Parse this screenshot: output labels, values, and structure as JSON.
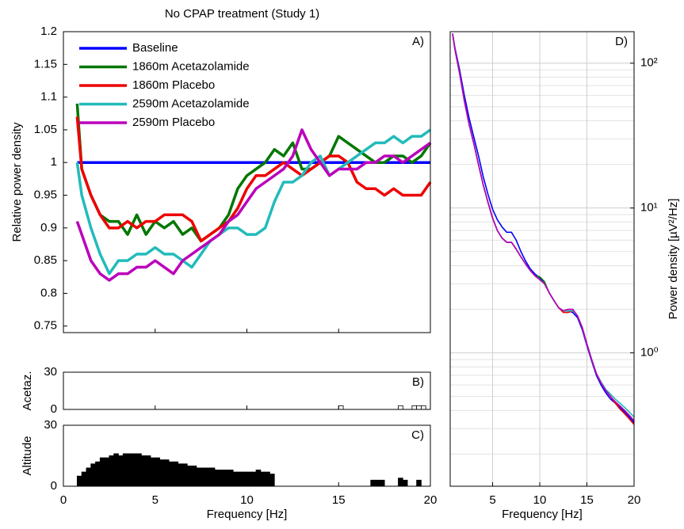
{
  "chart_data": [
    {
      "type": "line",
      "title": "No CPAP treatment (Study 1)",
      "annotation": "A)",
      "ylabel": "Relative power density",
      "legend": "upper left",
      "x": [
        0.75,
        1,
        1.5,
        2,
        2.5,
        3,
        3.5,
        4,
        4.5,
        5,
        5.5,
        6,
        6.5,
        7,
        7.5,
        8,
        8.5,
        9,
        9.5,
        10,
        10.5,
        11,
        11.5,
        12,
        12.5,
        13,
        13.5,
        14,
        14.5,
        15,
        15.5,
        16,
        16.5,
        17,
        17.5,
        18,
        18.5,
        19,
        19.5,
        20
      ],
      "series": [
        {
          "name": "Baseline",
          "color": "#0000ff",
          "values": [
            1,
            1,
            1,
            1,
            1,
            1,
            1,
            1,
            1,
            1,
            1,
            1,
            1,
            1,
            1,
            1,
            1,
            1,
            1,
            1,
            1,
            1,
            1,
            1,
            1,
            1,
            1,
            1,
            1,
            1,
            1,
            1,
            1,
            1,
            1,
            1,
            1,
            1,
            1,
            1
          ]
        },
        {
          "name": "1860m Acetazolamide",
          "color": "#007700",
          "values": [
            1.09,
            0.99,
            0.95,
            0.92,
            0.91,
            0.91,
            0.89,
            0.92,
            0.89,
            0.91,
            0.9,
            0.91,
            0.89,
            0.9,
            0.88,
            0.89,
            0.9,
            0.92,
            0.96,
            0.98,
            0.99,
            1.0,
            1.02,
            1.01,
            1.03,
            0.99,
            0.99,
            1.0,
            1.01,
            1.04,
            1.03,
            1.02,
            1.01,
            1.0,
            1.0,
            1.01,
            1.01,
            1.0,
            1.01,
            1.03
          ]
        },
        {
          "name": "1860m Placebo",
          "color": "#ee0000",
          "values": [
            1.07,
            0.99,
            0.95,
            0.92,
            0.9,
            0.9,
            0.91,
            0.9,
            0.91,
            0.91,
            0.92,
            0.92,
            0.92,
            0.91,
            0.88,
            0.89,
            0.9,
            0.91,
            0.93,
            0.96,
            0.98,
            0.98,
            0.99,
            1.0,
            0.99,
            0.98,
            0.99,
            1.0,
            1.01,
            1.01,
            1.0,
            0.97,
            0.96,
            0.96,
            0.95,
            0.96,
            0.95,
            0.95,
            0.95,
            0.97
          ]
        },
        {
          "name": "2590m Acetazolamide",
          "color": "#22bbbb",
          "values": [
            1.0,
            0.95,
            0.9,
            0.86,
            0.83,
            0.85,
            0.85,
            0.86,
            0.86,
            0.87,
            0.86,
            0.86,
            0.85,
            0.84,
            0.86,
            0.88,
            0.89,
            0.9,
            0.9,
            0.89,
            0.89,
            0.9,
            0.94,
            0.97,
            0.97,
            0.98,
            1.0,
            1.01,
            0.98,
            0.99,
            1.0,
            1.01,
            1.02,
            1.03,
            1.03,
            1.04,
            1.03,
            1.04,
            1.04,
            1.05
          ]
        },
        {
          "name": "2590m Placebo",
          "color": "#bb00bb",
          "values": [
            0.91,
            0.89,
            0.85,
            0.83,
            0.82,
            0.83,
            0.83,
            0.84,
            0.84,
            0.85,
            0.84,
            0.83,
            0.85,
            0.86,
            0.87,
            0.88,
            0.89,
            0.91,
            0.92,
            0.94,
            0.96,
            0.97,
            0.98,
            0.99,
            1.01,
            1.05,
            1.02,
            1.0,
            0.98,
            0.99,
            0.99,
            0.99,
            1.0,
            1.0,
            1.01,
            1.01,
            1.0,
            1.01,
            1.02,
            1.03
          ]
        }
      ],
      "xlim": [
        0,
        20
      ],
      "ylim": [
        0.74,
        1.2
      ],
      "yticks": [
        0.75,
        0.8,
        0.85,
        0.9,
        0.95,
        1,
        1.05,
        1.1,
        1.15,
        1.2
      ]
    },
    {
      "type": "bar",
      "annotation": "B)",
      "ylabel": "Acetaz.",
      "color": "#ffffff",
      "edgecolor": "#000000",
      "x": [
        15,
        18.25,
        19,
        19.25,
        19.5
      ],
      "values": [
        3,
        3,
        3,
        3,
        3
      ],
      "xlim": [
        0,
        20
      ],
      "ylim": [
        0,
        30
      ],
      "yticks": [
        0,
        30
      ]
    },
    {
      "type": "bar",
      "annotation": "C)",
      "ylabel": "Altitude",
      "xlabel": "Frequency [Hz]",
      "color": "#000000",
      "edgecolor": "#000000",
      "x": [
        0.75,
        1,
        1.25,
        1.5,
        1.75,
        2,
        2.25,
        2.5,
        2.75,
        3,
        3.25,
        3.5,
        3.75,
        4,
        4.25,
        4.5,
        4.75,
        5,
        5.25,
        5.5,
        5.75,
        6,
        6.25,
        6.5,
        6.75,
        7,
        7.25,
        7.5,
        7.75,
        8,
        8.25,
        8.5,
        8.75,
        9,
        9.25,
        9.5,
        9.75,
        10,
        10.25,
        10.5,
        10.75,
        11,
        11.25,
        16.75,
        17,
        17.25,
        18.25,
        18.5,
        19.25
      ],
      "values": [
        5,
        7,
        9,
        11,
        12,
        14,
        14,
        15,
        16,
        15,
        16,
        16,
        16,
        16,
        15,
        15,
        14,
        14,
        13,
        13,
        12,
        12,
        11,
        11,
        10,
        10,
        9,
        9,
        9,
        9,
        8,
        8,
        8,
        8,
        7,
        7,
        7,
        7,
        7,
        8,
        7,
        7,
        6,
        3,
        3,
        3,
        4,
        3,
        3
      ],
      "xlim": [
        0,
        20
      ],
      "ylim": [
        0,
        30
      ],
      "yticks": [
        0,
        30
      ],
      "xticks": [
        0,
        5,
        10,
        15,
        20
      ]
    },
    {
      "type": "line",
      "annotation": "D)",
      "ylabel": "Power density [µV²/Hz]",
      "xlabel": "Frequency [Hz]",
      "yscale": "log",
      "grid": true,
      "x": [
        0.75,
        1,
        1.5,
        2,
        2.5,
        3,
        3.5,
        4,
        4.5,
        5,
        5.5,
        6,
        6.5,
        7,
        7.5,
        8,
        8.5,
        9,
        9.5,
        10,
        10.5,
        11,
        11.5,
        12,
        12.5,
        13,
        13.5,
        14,
        14.5,
        15,
        15.5,
        16,
        16.5,
        17,
        17.5,
        18,
        18.5,
        19,
        19.5,
        20
      ],
      "series": [
        {
          "color": "#0000ff",
          "values": [
            160,
            128,
            90,
            60,
            42,
            31,
            23,
            16.5,
            12.5,
            9.8,
            8.3,
            7.4,
            6.8,
            6.8,
            6.0,
            5.0,
            4.3,
            3.8,
            3.5,
            3.3,
            3.0,
            2.6,
            2.3,
            2.05,
            1.95,
            1.95,
            1.9,
            1.75,
            1.45,
            1.12,
            0.88,
            0.7,
            0.6,
            0.53,
            0.48,
            0.45,
            0.42,
            0.39,
            0.36,
            0.33
          ]
        },
        {
          "color": "#007700",
          "values": [
            160,
            125,
            85,
            55,
            38,
            28,
            20,
            14.5,
            11,
            8.5,
            7,
            6.2,
            5.8,
            5.8,
            5.2,
            4.6,
            4.1,
            3.7,
            3.4,
            3.35,
            3.1,
            2.6,
            2.3,
            2.05,
            1.95,
            1.95,
            1.95,
            1.8,
            1.5,
            1.15,
            0.9,
            0.72,
            0.62,
            0.55,
            0.5,
            0.46,
            0.43,
            0.4,
            0.37,
            0.34
          ]
        },
        {
          "color": "#ee0000",
          "values": [
            160,
            125,
            85,
            55,
            38,
            28,
            20,
            14.5,
            11,
            8.5,
            7,
            6.2,
            5.8,
            5.8,
            5.2,
            4.6,
            4.1,
            3.7,
            3.4,
            3.2,
            3.0,
            2.6,
            2.3,
            2.05,
            1.9,
            1.9,
            1.95,
            1.8,
            1.5,
            1.15,
            0.9,
            0.72,
            0.62,
            0.55,
            0.5,
            0.45,
            0.41,
            0.38,
            0.35,
            0.32
          ]
        },
        {
          "color": "#22bbbb",
          "values": [
            160,
            125,
            85,
            55,
            38,
            28,
            20,
            14.5,
            11,
            8.5,
            7,
            6.2,
            5.8,
            5.8,
            5.2,
            4.6,
            4.1,
            3.7,
            3.4,
            3.2,
            3.0,
            2.6,
            2.3,
            2.05,
            1.95,
            1.95,
            1.95,
            1.8,
            1.5,
            1.15,
            0.9,
            0.72,
            0.63,
            0.56,
            0.52,
            0.48,
            0.45,
            0.42,
            0.39,
            0.36
          ]
        },
        {
          "color": "#bb00bb",
          "values": [
            160,
            125,
            85,
            55,
            38,
            28,
            20,
            14.5,
            11,
            8.5,
            7,
            6.2,
            5.8,
            5.8,
            5.2,
            4.6,
            4.1,
            3.7,
            3.4,
            3.2,
            3.0,
            2.6,
            2.3,
            2.05,
            1.95,
            2.0,
            2.0,
            1.8,
            1.5,
            1.15,
            0.9,
            0.72,
            0.62,
            0.55,
            0.5,
            0.46,
            0.43,
            0.4,
            0.37,
            0.34
          ]
        }
      ],
      "xlim": [
        0.5,
        20
      ],
      "ylim": [
        0.12,
        165
      ],
      "xticks": [
        5,
        10,
        15,
        20
      ],
      "yticks": [
        {
          "value": 1,
          "label": "10⁰"
        },
        {
          "value": 10,
          "label": "10¹"
        },
        {
          "value": 100,
          "label": "10²"
        }
      ],
      "minor_yticks": [
        0.2,
        0.3,
        0.4,
        0.5,
        0.6,
        0.7,
        0.8,
        0.9,
        2,
        3,
        4,
        5,
        6,
        7,
        8,
        9,
        20,
        30,
        40,
        50,
        60,
        70,
        80,
        90
      ]
    }
  ]
}
